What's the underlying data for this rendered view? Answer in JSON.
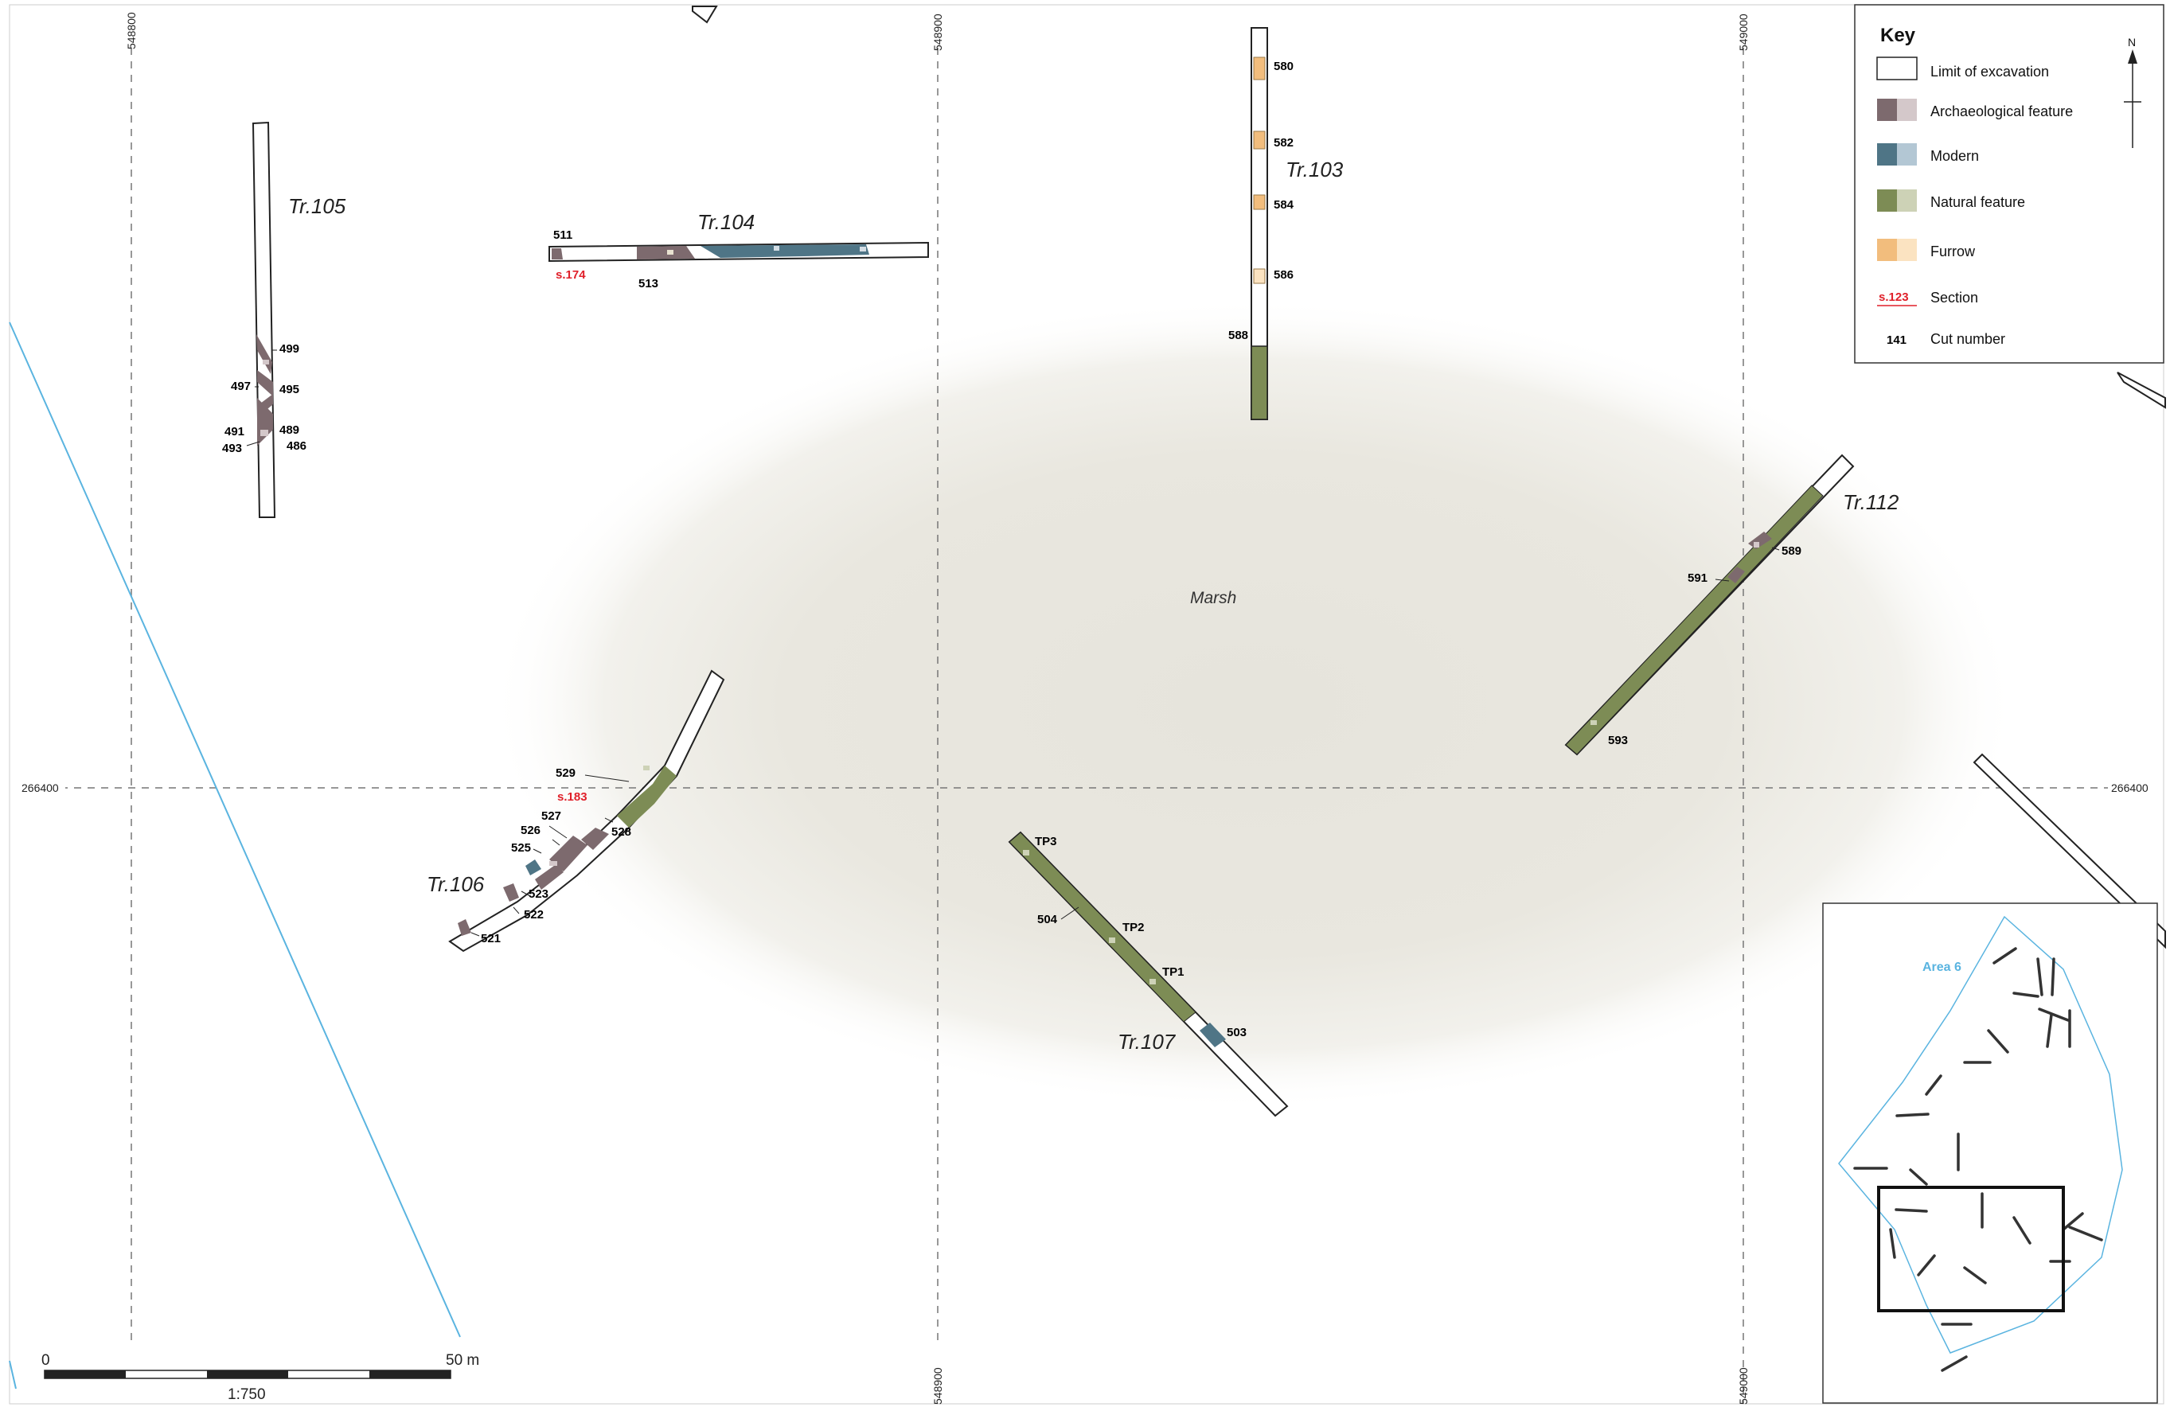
{
  "map": {
    "grid": {
      "easting_548800": "548800",
      "easting_548900": "548900",
      "easting_549000": "549000",
      "northing_266400": "266400"
    },
    "marsh_label": "Marsh",
    "trenches": {
      "tr103": "Tr.103",
      "tr104": "Tr.104",
      "tr105": "Tr.105",
      "tr106": "Tr.106",
      "tr107": "Tr.107",
      "tr112": "Tr.112"
    },
    "cuts": {
      "c580": "580",
      "c582": "582",
      "c584": "584",
      "c586": "586",
      "c588": "588",
      "c511": "511",
      "c513": "513",
      "c499": "499",
      "c497": "497",
      "c495": "495",
      "c491": "491",
      "c489": "489",
      "c493": "493",
      "c486": "486",
      "c529": "529",
      "c527": "527",
      "c526": "526",
      "c525": "525",
      "c528": "528",
      "c523": "523",
      "c522": "522",
      "c521": "521",
      "c504": "504",
      "c503": "503",
      "c591": "591",
      "c589": "589",
      "c593": "593"
    },
    "test_pits": {
      "tp1": "TP1",
      "tp2": "TP2",
      "tp3": "TP3"
    },
    "sections": {
      "s174": "s.174",
      "s183": "s.183"
    }
  },
  "key": {
    "title": "Key",
    "items": [
      {
        "label": "Limit of excavation",
        "colors": [
          "#ffffff",
          "#ffffff"
        ]
      },
      {
        "label": "Archaeological feature",
        "colors": [
          "#7d6a6e",
          "#d4c8ca"
        ]
      },
      {
        "label": "Modern",
        "colors": [
          "#4f7586",
          "#b3c7d4"
        ]
      },
      {
        "label": "Natural feature",
        "colors": [
          "#7d8c55",
          "#cdd2b6"
        ]
      },
      {
        "label": "Furrow",
        "colors": [
          "#f2bd7d",
          "#fbe3c1"
        ]
      },
      {
        "label": "Section",
        "sample": "s.123"
      },
      {
        "label": "Cut number",
        "sample": "141"
      }
    ]
  },
  "north_arrow": {
    "label": "N"
  },
  "scale_bar": {
    "start": "0",
    "end": "50 m",
    "ratio": "1:750"
  },
  "inset": {
    "area_label": "Area 6"
  },
  "colors": {
    "archaeological": "#7d6a6e",
    "modern": "#4f7586",
    "natural": "#7d8c55",
    "furrow": "#f2bd7d",
    "section_red": "#e0202a",
    "water_blue": "#5ab4e0"
  }
}
